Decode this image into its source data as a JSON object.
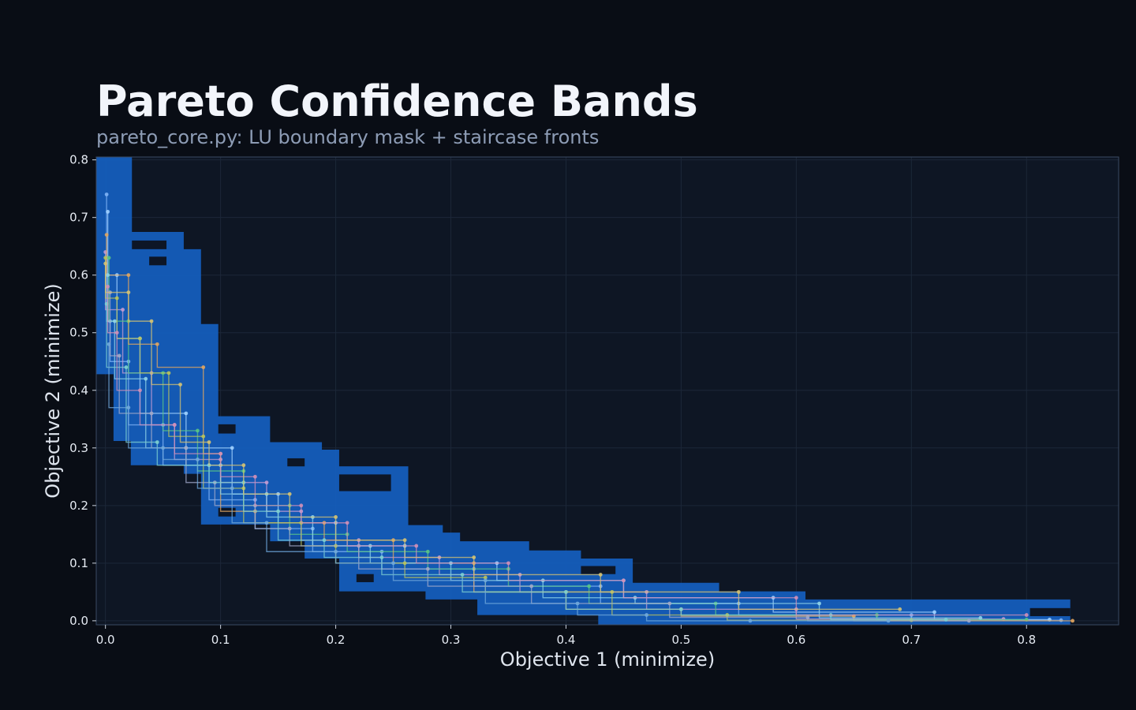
{
  "header": {
    "title": "Pareto Confidence Bands",
    "subtitle": "pareto_core.py: LU boundary mask + staircase fronts"
  },
  "colors": {
    "page_bg": "#090d15",
    "plot_bg": "#0e1624",
    "grid": "#1c2738",
    "spine": "#3b4a63",
    "band_fill": "#1560c0",
    "band_hole": "#0d1626",
    "front_palette": [
      "#7fb3f5",
      "#9fd0ff",
      "#c39bd3",
      "#58c487",
      "#e0a560",
      "#8fd3e8",
      "#b8c25c",
      "#a0a8c8",
      "#7ccfd0",
      "#cf8fb8",
      "#6fa8dc",
      "#d4c273"
    ]
  },
  "chart_data": {
    "type": "line",
    "title": "Pareto Confidence Bands",
    "subtitle": "pareto_core.py: LU boundary mask + staircase fronts",
    "xlabel": "Objective 1 (minimize)",
    "ylabel": "Objective 2 (minimize)",
    "xlim": [
      -0.008,
      0.88
    ],
    "ylim": [
      -0.007,
      0.805
    ],
    "grid": true,
    "x_ticks": [
      "0.0",
      "0.1",
      "0.2",
      "0.3",
      "0.4",
      "0.5",
      "0.6",
      "0.7",
      "0.8"
    ],
    "y_ticks": [
      "0.0",
      "0.1",
      "0.2",
      "0.3",
      "0.4",
      "0.5",
      "0.6",
      "0.7",
      "0.8"
    ],
    "band": {
      "upper_boundary": [
        [
          -0.008,
          0.805
        ],
        [
          0.023,
          0.805
        ],
        [
          0.023,
          0.675
        ],
        [
          0.068,
          0.675
        ],
        [
          0.068,
          0.645
        ],
        [
          0.083,
          0.645
        ],
        [
          0.083,
          0.515
        ],
        [
          0.098,
          0.515
        ],
        [
          0.098,
          0.355
        ],
        [
          0.143,
          0.355
        ],
        [
          0.143,
          0.31
        ],
        [
          0.188,
          0.31
        ],
        [
          0.188,
          0.297
        ],
        [
          0.203,
          0.297
        ],
        [
          0.203,
          0.268
        ],
        [
          0.263,
          0.268
        ],
        [
          0.263,
          0.166
        ],
        [
          0.293,
          0.166
        ],
        [
          0.293,
          0.153
        ],
        [
          0.308,
          0.153
        ],
        [
          0.308,
          0.138
        ],
        [
          0.368,
          0.138
        ],
        [
          0.368,
          0.122
        ],
        [
          0.413,
          0.122
        ],
        [
          0.413,
          0.108
        ],
        [
          0.458,
          0.108
        ],
        [
          0.458,
          0.066
        ],
        [
          0.533,
          0.066
        ],
        [
          0.533,
          0.051
        ],
        [
          0.608,
          0.051
        ],
        [
          0.608,
          0.037
        ],
        [
          0.838,
          0.037
        ],
        [
          0.838,
          0.022
        ]
      ],
      "lower_boundary": [
        [
          -0.008,
          0.428
        ],
        [
          0.007,
          0.428
        ],
        [
          0.007,
          0.312
        ],
        [
          0.022,
          0.312
        ],
        [
          0.022,
          0.27
        ],
        [
          0.068,
          0.27
        ],
        [
          0.068,
          0.255
        ],
        [
          0.083,
          0.255
        ],
        [
          0.083,
          0.167
        ],
        [
          0.143,
          0.167
        ],
        [
          0.143,
          0.138
        ],
        [
          0.173,
          0.138
        ],
        [
          0.173,
          0.108
        ],
        [
          0.203,
          0.108
        ],
        [
          0.203,
          0.051
        ],
        [
          0.278,
          0.051
        ],
        [
          0.278,
          0.037
        ],
        [
          0.323,
          0.037
        ],
        [
          0.323,
          0.01
        ],
        [
          0.428,
          0.01
        ],
        [
          0.428,
          -0.007
        ],
        [
          0.838,
          -0.007
        ],
        [
          0.838,
          0.008
        ]
      ],
      "holes": [
        [
          0.023,
          0.66,
          0.053,
          0.645
        ],
        [
          0.038,
          0.632,
          0.053,
          0.617
        ],
        [
          0.098,
          0.341,
          0.113,
          0.325
        ],
        [
          0.158,
          0.282,
          0.173,
          0.268
        ],
        [
          0.203,
          0.254,
          0.248,
          0.225
        ],
        [
          0.098,
          0.196,
          0.113,
          0.181
        ],
        [
          0.218,
          0.081,
          0.233,
          0.067
        ],
        [
          0.413,
          0.095,
          0.443,
          0.081
        ],
        [
          0.803,
          0.022,
          0.838,
          0.008
        ]
      ]
    },
    "series": [
      {
        "points": [
          [
            0.001,
            0.74
          ],
          [
            0.004,
            0.52
          ],
          [
            0.02,
            0.45
          ],
          [
            0.05,
            0.34
          ],
          [
            0.09,
            0.27
          ],
          [
            0.13,
            0.21
          ],
          [
            0.18,
            0.16
          ],
          [
            0.24,
            0.12
          ],
          [
            0.32,
            0.09
          ],
          [
            0.43,
            0.06
          ],
          [
            0.55,
            0.03
          ],
          [
            0.7,
            0.01
          ],
          [
            0.83,
            0.001
          ]
        ]
      },
      {
        "points": [
          [
            0.002,
            0.71
          ],
          [
            0.01,
            0.6
          ],
          [
            0.03,
            0.49
          ],
          [
            0.07,
            0.36
          ],
          [
            0.11,
            0.3
          ],
          [
            0.15,
            0.22
          ],
          [
            0.2,
            0.17
          ],
          [
            0.26,
            0.13
          ],
          [
            0.34,
            0.1
          ],
          [
            0.45,
            0.07
          ],
          [
            0.58,
            0.04
          ],
          [
            0.72,
            0.015
          ],
          [
            0.82,
            0.002
          ]
        ]
      },
      {
        "points": [
          [
            0.0,
            0.64
          ],
          [
            0.015,
            0.54
          ],
          [
            0.04,
            0.43
          ],
          [
            0.06,
            0.34
          ],
          [
            0.1,
            0.28
          ],
          [
            0.14,
            0.24
          ],
          [
            0.17,
            0.19
          ],
          [
            0.22,
            0.14
          ],
          [
            0.29,
            0.11
          ],
          [
            0.36,
            0.08
          ],
          [
            0.47,
            0.05
          ],
          [
            0.6,
            0.02
          ],
          [
            0.78,
            0.003
          ]
        ]
      },
      {
        "points": [
          [
            0.003,
            0.63
          ],
          [
            0.02,
            0.52
          ],
          [
            0.05,
            0.43
          ],
          [
            0.08,
            0.33
          ],
          [
            0.12,
            0.26
          ],
          [
            0.16,
            0.2
          ],
          [
            0.21,
            0.15
          ],
          [
            0.28,
            0.12
          ],
          [
            0.35,
            0.09
          ],
          [
            0.42,
            0.06
          ],
          [
            0.53,
            0.03
          ],
          [
            0.67,
            0.01
          ],
          [
            0.8,
            0.002
          ]
        ]
      },
      {
        "points": [
          [
            0.001,
            0.67
          ],
          [
            0.02,
            0.6
          ],
          [
            0.045,
            0.48
          ],
          [
            0.085,
            0.44
          ],
          [
            0.1,
            0.29
          ],
          [
            0.13,
            0.19
          ],
          [
            0.19,
            0.17
          ],
          [
            0.25,
            0.14
          ],
          [
            0.32,
            0.1
          ],
          [
            0.4,
            0.05
          ],
          [
            0.5,
            0.02
          ],
          [
            0.65,
            0.008
          ],
          [
            0.84,
            0.0
          ]
        ]
      },
      {
        "points": [
          [
            0.002,
            0.6
          ],
          [
            0.008,
            0.52
          ],
          [
            0.035,
            0.42
          ],
          [
            0.07,
            0.3
          ],
          [
            0.1,
            0.27
          ],
          [
            0.14,
            0.22
          ],
          [
            0.18,
            0.18
          ],
          [
            0.23,
            0.13
          ],
          [
            0.3,
            0.1
          ],
          [
            0.38,
            0.07
          ],
          [
            0.46,
            0.04
          ],
          [
            0.62,
            0.03
          ],
          [
            0.76,
            0.005
          ]
        ]
      },
      {
        "points": [
          [
            0.0,
            0.63
          ],
          [
            0.01,
            0.56
          ],
          [
            0.03,
            0.49
          ],
          [
            0.055,
            0.43
          ],
          [
            0.085,
            0.32
          ],
          [
            0.12,
            0.23
          ],
          [
            0.17,
            0.17
          ],
          [
            0.2,
            0.13
          ],
          [
            0.26,
            0.1
          ],
          [
            0.33,
            0.075
          ],
          [
            0.44,
            0.05
          ],
          [
            0.54,
            0.01
          ],
          [
            0.7,
            0.001
          ]
        ]
      },
      {
        "points": [
          [
            0.004,
            0.57
          ],
          [
            0.012,
            0.46
          ],
          [
            0.04,
            0.36
          ],
          [
            0.07,
            0.3
          ],
          [
            0.095,
            0.24
          ],
          [
            0.13,
            0.2
          ],
          [
            0.16,
            0.16
          ],
          [
            0.22,
            0.13
          ],
          [
            0.28,
            0.09
          ],
          [
            0.37,
            0.06
          ],
          [
            0.49,
            0.03
          ],
          [
            0.61,
            0.006
          ],
          [
            0.75,
            0.0
          ]
        ]
      },
      {
        "points": [
          [
            0.001,
            0.55
          ],
          [
            0.018,
            0.44
          ],
          [
            0.045,
            0.31
          ],
          [
            0.09,
            0.27
          ],
          [
            0.12,
            0.24
          ],
          [
            0.15,
            0.19
          ],
          [
            0.19,
            0.14
          ],
          [
            0.24,
            0.11
          ],
          [
            0.31,
            0.08
          ],
          [
            0.4,
            0.05
          ],
          [
            0.5,
            0.02
          ],
          [
            0.63,
            0.01
          ],
          [
            0.73,
            0.002
          ]
        ]
      },
      {
        "points": [
          [
            0.002,
            0.58
          ],
          [
            0.01,
            0.5
          ],
          [
            0.03,
            0.4
          ],
          [
            0.06,
            0.34
          ],
          [
            0.1,
            0.29
          ],
          [
            0.13,
            0.25
          ],
          [
            0.17,
            0.2
          ],
          [
            0.21,
            0.17
          ],
          [
            0.27,
            0.13
          ],
          [
            0.35,
            0.1
          ],
          [
            0.45,
            0.07
          ],
          [
            0.6,
            0.04
          ],
          [
            0.8,
            0.01
          ]
        ]
      },
      {
        "points": [
          [
            0.003,
            0.48
          ],
          [
            0.02,
            0.37
          ],
          [
            0.05,
            0.3
          ],
          [
            0.08,
            0.28
          ],
          [
            0.11,
            0.23
          ],
          [
            0.14,
            0.17
          ],
          [
            0.2,
            0.12
          ],
          [
            0.25,
            0.1
          ],
          [
            0.33,
            0.07
          ],
          [
            0.41,
            0.03
          ],
          [
            0.47,
            0.01
          ],
          [
            0.56,
            0.0
          ],
          [
            0.68,
            0.0
          ]
        ]
      },
      {
        "points": [
          [
            0.0,
            0.62
          ],
          [
            0.02,
            0.57
          ],
          [
            0.04,
            0.52
          ],
          [
            0.065,
            0.41
          ],
          [
            0.09,
            0.31
          ],
          [
            0.12,
            0.27
          ],
          [
            0.16,
            0.22
          ],
          [
            0.2,
            0.18
          ],
          [
            0.26,
            0.14
          ],
          [
            0.32,
            0.11
          ],
          [
            0.43,
            0.08
          ],
          [
            0.55,
            0.05
          ],
          [
            0.69,
            0.02
          ]
        ]
      }
    ]
  }
}
